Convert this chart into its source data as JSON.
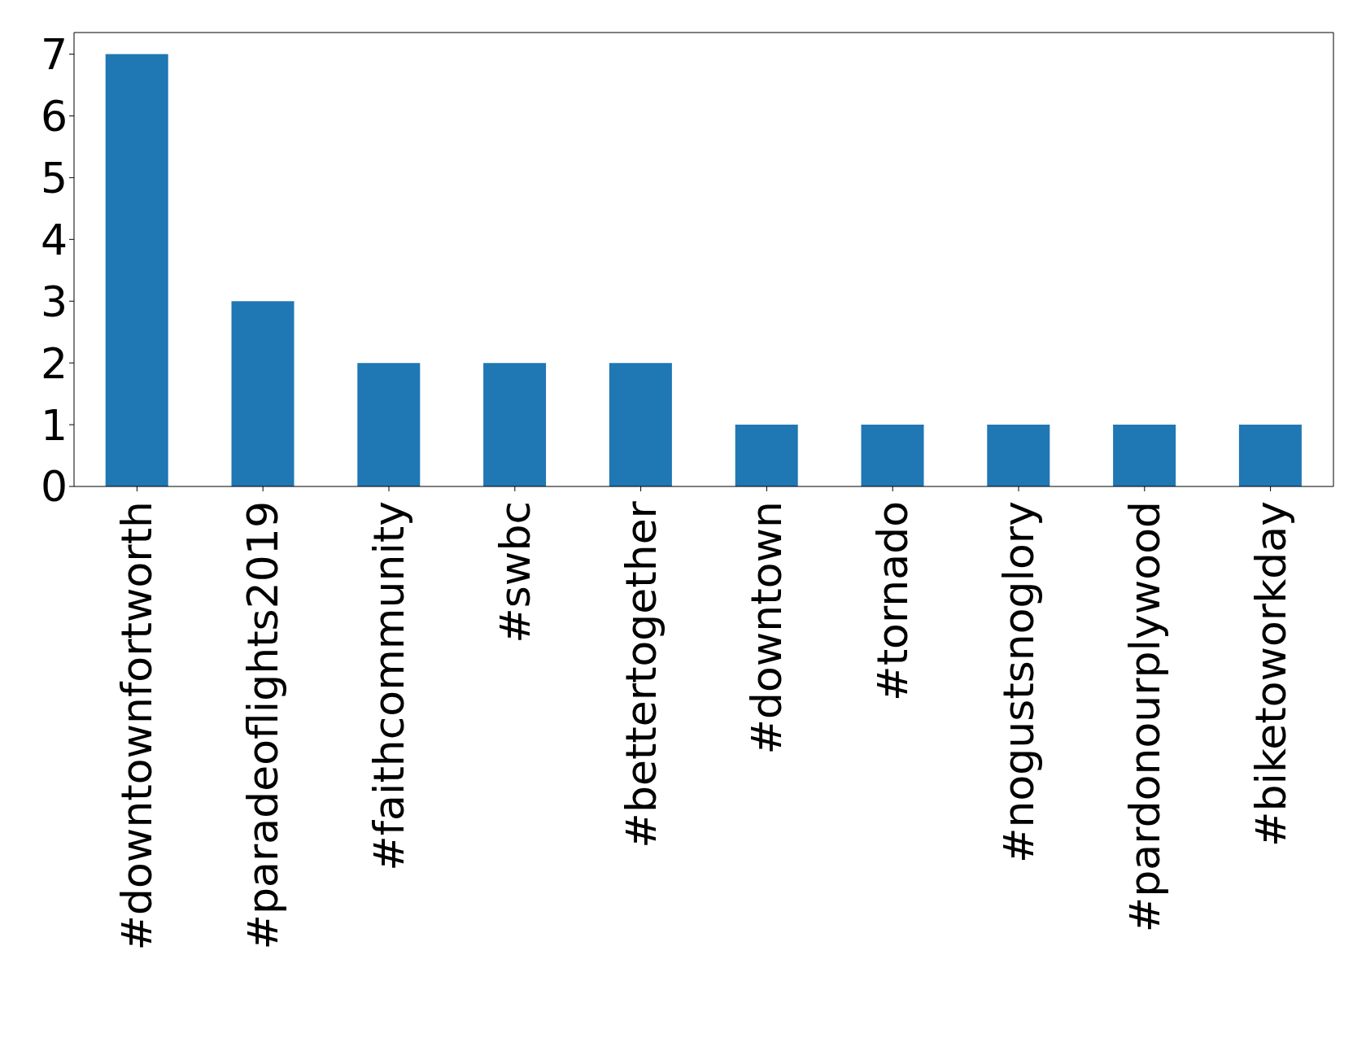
{
  "chart_data": {
    "type": "bar",
    "categories": [
      "#downtownfortworth",
      "#paradeoflights2019",
      "#faithcommunity",
      "#swbc",
      "#bettertogether",
      "#downtown",
      "#tornado",
      "#nogustsnoglory",
      "#pardonourplywood",
      "#biketoworkday"
    ],
    "values": [
      7,
      3,
      2,
      2,
      2,
      1,
      1,
      1,
      1,
      1
    ],
    "color": "#1f77b4",
    "ylim": [
      0,
      7.35
    ],
    "yticks": [
      0,
      1,
      2,
      3,
      4,
      5,
      6,
      7
    ]
  }
}
